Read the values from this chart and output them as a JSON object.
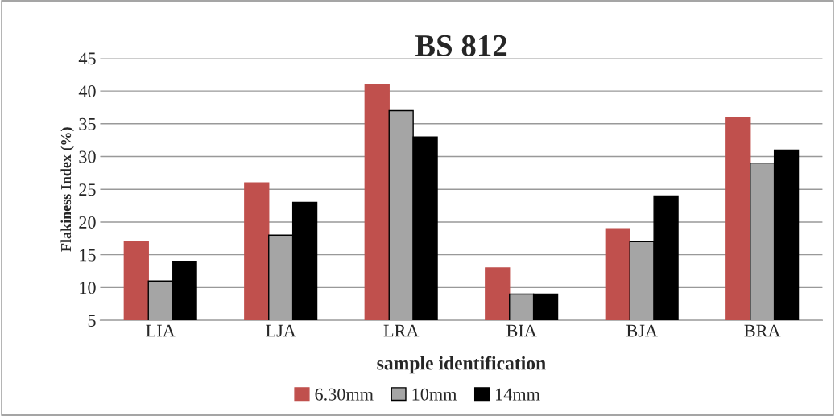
{
  "chart_data": {
    "type": "bar",
    "title": "BS 812",
    "xlabel": "sample identification",
    "ylabel": "Flakiness Index (%)",
    "categories": [
      "LIA",
      "LJA",
      "LRA",
      "BIA",
      "BJA",
      "BRA"
    ],
    "series": [
      {
        "name": "6.30mm",
        "color": "#c0504d",
        "values": [
          17,
          26,
          41,
          13,
          19,
          36
        ]
      },
      {
        "name": "10mm",
        "color": "#a5a5a5",
        "values": [
          11,
          18,
          37,
          9,
          17,
          29
        ]
      },
      {
        "name": "14mm",
        "color": "#000000",
        "values": [
          14,
          23,
          33,
          9,
          24,
          31
        ]
      }
    ],
    "ylim": [
      5,
      45
    ],
    "yticks": [
      5,
      10,
      15,
      20,
      25,
      30,
      35,
      40,
      45
    ],
    "grid": "y",
    "legend": "bottom"
  }
}
